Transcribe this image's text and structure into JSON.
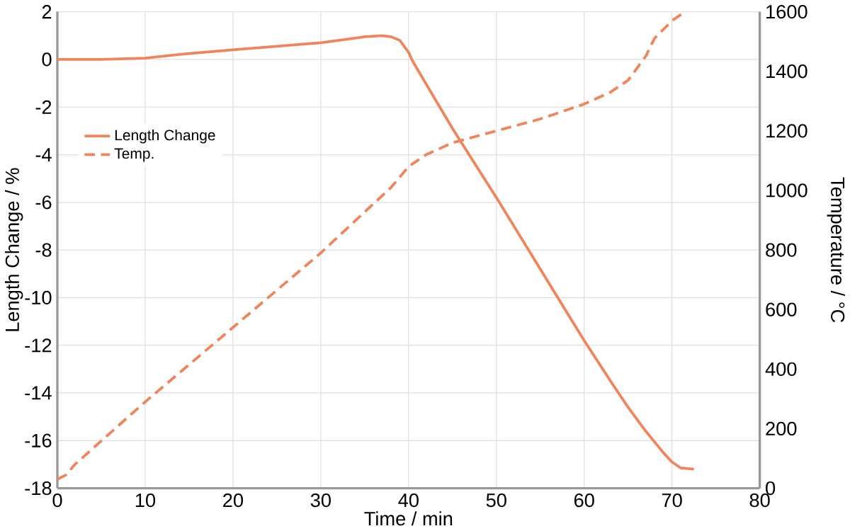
{
  "chart_data": {
    "type": "line",
    "xlabel": "Time / min",
    "ylabel": "Length Change / %",
    "y2label": "Temperature / °C",
    "xlim": [
      0,
      80
    ],
    "xticks": [
      0,
      10,
      20,
      30,
      40,
      50,
      60,
      70,
      80
    ],
    "ylim": [
      -18,
      2
    ],
    "yticks": [
      -18,
      -16,
      -14,
      -12,
      -10,
      -8,
      -6,
      -4,
      -2,
      0,
      2
    ],
    "y2lim": [
      0,
      1600
    ],
    "y2ticks": [
      0,
      200,
      400,
      600,
      800,
      1000,
      1200,
      1400,
      1600
    ],
    "grid": true,
    "legend": "left",
    "series": [
      {
        "name": "Length Change",
        "color": "#f0845a",
        "line_style": "solid",
        "x": [
          0,
          5,
          10,
          15,
          20,
          25,
          30,
          33,
          35,
          37,
          38,
          39,
          40,
          40.5,
          45,
          50,
          55,
          60,
          63,
          65,
          67,
          69,
          70,
          71,
          72.5
        ],
        "values": [
          0,
          0,
          0.05,
          0.25,
          0.4,
          0.55,
          0.7,
          0.85,
          0.95,
          1.0,
          0.95,
          0.8,
          0.3,
          -0.1,
          -2.9,
          -5.8,
          -8.8,
          -11.8,
          -13.5,
          -14.6,
          -15.6,
          -16.5,
          -16.9,
          -17.15,
          -17.2
        ]
      },
      {
        "name": "Temp.",
        "color": "#f0845a",
        "line_style": "dashed",
        "axis": "y2",
        "x": [
          0,
          1,
          2,
          10,
          20,
          30,
          38,
          40,
          41,
          42,
          45,
          50,
          55,
          60,
          63,
          65,
          66,
          67,
          68,
          70,
          71.5
        ],
        "values": [
          30,
          45,
          80,
          290,
          540,
          790,
          1010,
          1080,
          1100,
          1120,
          1160,
          1200,
          1240,
          1290,
          1330,
          1370,
          1410,
          1450,
          1510,
          1570,
          1600
        ]
      }
    ]
  }
}
